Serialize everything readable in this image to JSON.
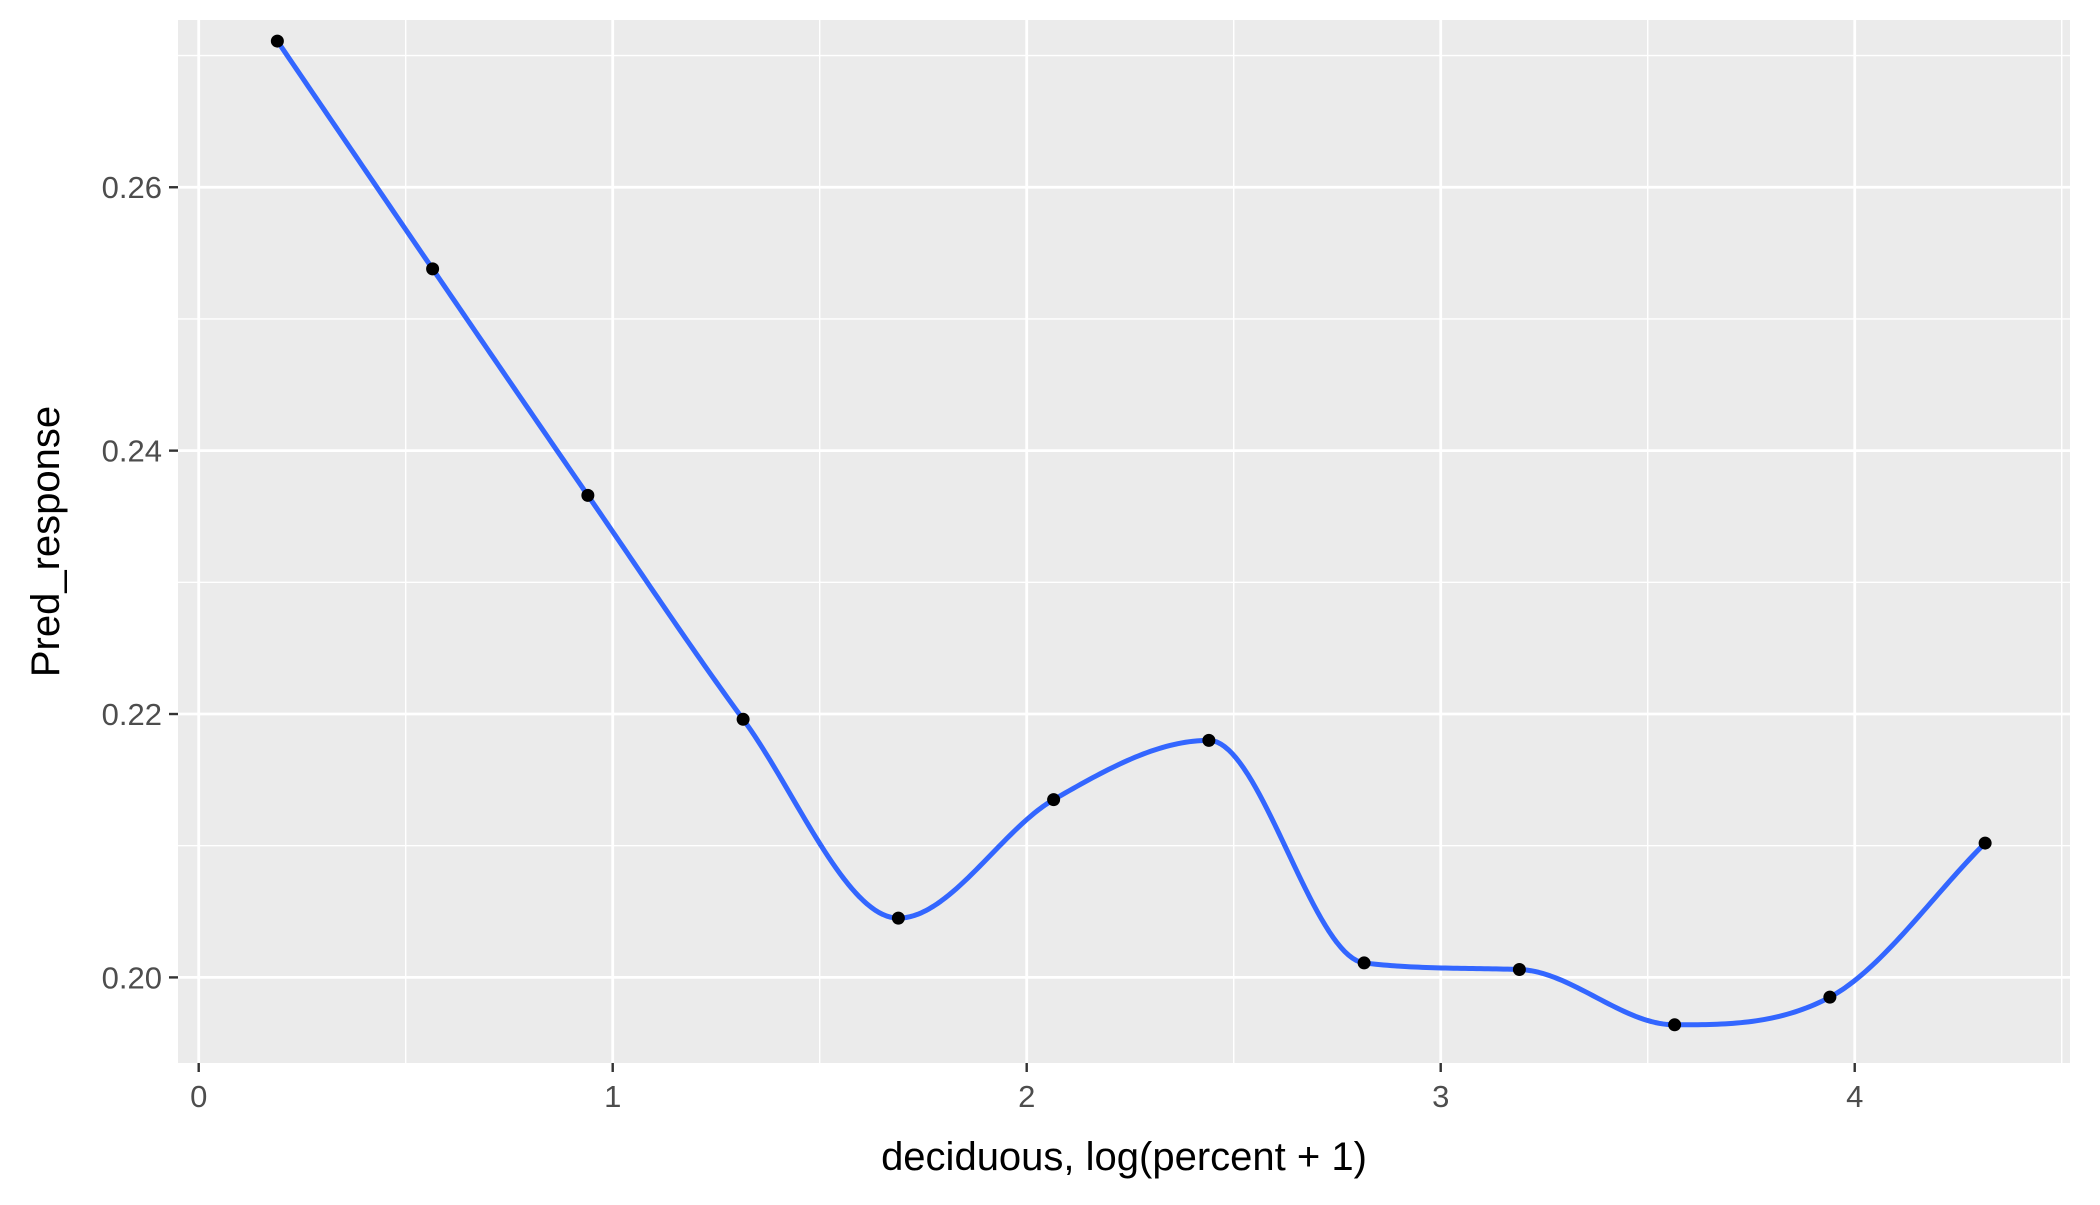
{
  "chart_data": {
    "type": "line",
    "title": "",
    "xlabel": "deciduous, log(percent + 1)",
    "ylabel": "Pred_response",
    "xlim": [
      -0.05,
      4.52
    ],
    "ylim": [
      0.1935,
      0.2727
    ],
    "x_ticks": [
      0,
      1,
      2,
      3,
      4
    ],
    "x_tick_labels": [
      "0",
      "1",
      "2",
      "3",
      "4"
    ],
    "y_ticks": [
      0.2,
      0.22,
      0.24,
      0.26
    ],
    "y_tick_labels": [
      "0.20",
      "0.22",
      "0.24",
      "0.26"
    ],
    "grid": true,
    "series": [
      {
        "style": "points",
        "color": "#000000",
        "x": [
          0.19,
          0.565,
          0.94,
          1.315,
          1.69,
          2.065,
          2.44,
          2.815,
          3.19,
          3.565,
          3.94,
          4.315
        ],
        "y": [
          0.2711,
          0.2538,
          0.2366,
          0.2196,
          0.2045,
          0.2135,
          0.218,
          0.2011,
          0.2006,
          0.1964,
          0.1985,
          0.2102
        ]
      },
      {
        "style": "smooth-line",
        "color": "#3366FF",
        "x": [
          0.19,
          0.565,
          0.94,
          1.315,
          1.69,
          2.065,
          2.44,
          2.815,
          3.19,
          3.565,
          3.94,
          4.315
        ],
        "y": [
          0.2711,
          0.2538,
          0.2366,
          0.2196,
          0.2045,
          0.2135,
          0.218,
          0.2011,
          0.2006,
          0.1964,
          0.1985,
          0.2102
        ]
      }
    ],
    "colors": {
      "panel_background": "#EBEBEB",
      "grid_major": "#FFFFFF",
      "grid_minor": "#FFFFFF",
      "axis_ticks": "#333333"
    }
  }
}
